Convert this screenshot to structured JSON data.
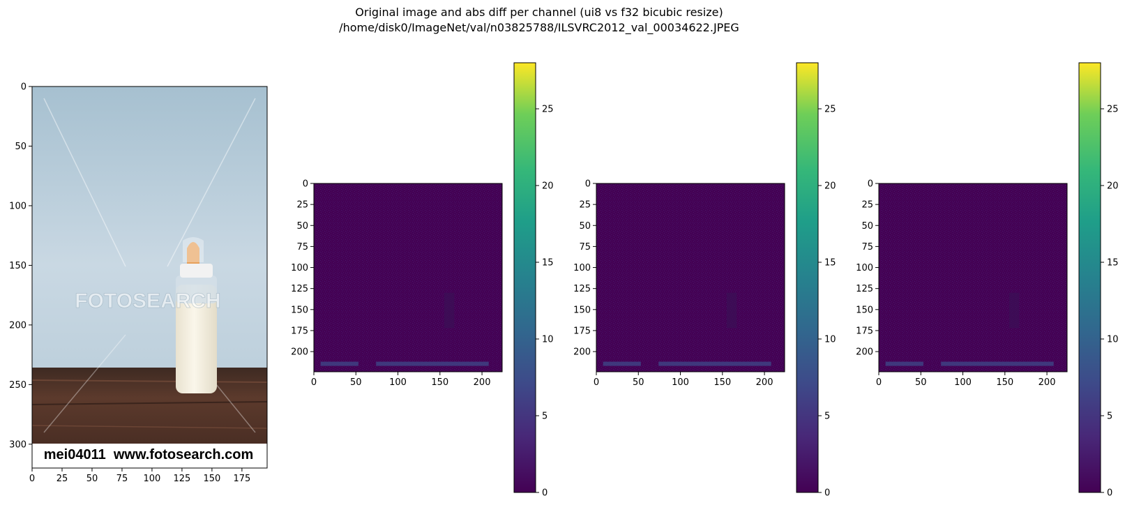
{
  "figure": {
    "title_line1": "Original image and abs diff per channel (ui8 vs f32 bicubic resize)",
    "title_line2": "/home/disk0/ImageNet/val/n03825788/ILSVRC2012_val_00034622.JPEG"
  },
  "colors": {
    "viridis_dark": "#440154",
    "viridis_purple": "#482878",
    "viridis_blue": "#3e4989",
    "viridis_teal": "#26828e",
    "viridis_green": "#35b779",
    "viridis_yellow": "#fde725",
    "photo_wall": "#b9cdd9",
    "photo_table": "#4e3026",
    "bottle_milk": "#f4efe0",
    "nipple": "#e6a05a"
  },
  "chart_data": [
    {
      "type": "image",
      "panel": "original",
      "xlim": [
        0,
        196
      ],
      "ylim": [
        320,
        0
      ],
      "xticks": [
        0,
        25,
        50,
        75,
        100,
        125,
        150,
        175
      ],
      "yticks": [
        0,
        50,
        100,
        150,
        200,
        250,
        300
      ],
      "image_text": {
        "watermark": "FOTOSEARCH",
        "caption": "mei04011  www.fotosearch.com"
      }
    },
    {
      "type": "heatmap",
      "panel": "diff-channel-1",
      "colormap": "viridis",
      "xlim": [
        0,
        224
      ],
      "ylim": [
        224,
        0
      ],
      "xticks": [
        0,
        50,
        100,
        150,
        200
      ],
      "yticks": [
        0,
        25,
        50,
        75,
        100,
        125,
        150,
        175,
        200
      ],
      "colorbar_range": [
        0,
        28
      ],
      "colorbar_ticks": [
        0,
        5,
        10,
        15,
        20,
        25
      ]
    },
    {
      "type": "heatmap",
      "panel": "diff-channel-2",
      "colormap": "viridis",
      "xlim": [
        0,
        224
      ],
      "ylim": [
        224,
        0
      ],
      "xticks": [
        0,
        50,
        100,
        150,
        200
      ],
      "yticks": [
        0,
        25,
        50,
        75,
        100,
        125,
        150,
        175,
        200
      ],
      "colorbar_range": [
        0,
        28
      ],
      "colorbar_ticks": [
        0,
        5,
        10,
        15,
        20,
        25
      ]
    },
    {
      "type": "heatmap",
      "panel": "diff-channel-3",
      "colormap": "viridis",
      "xlim": [
        0,
        224
      ],
      "ylim": [
        224,
        0
      ],
      "xticks": [
        0,
        50,
        100,
        150,
        200
      ],
      "yticks": [
        0,
        25,
        50,
        75,
        100,
        125,
        150,
        175,
        200
      ],
      "colorbar_range": [
        0,
        28
      ],
      "colorbar_ticks": [
        0,
        5,
        10,
        15,
        20,
        25
      ]
    }
  ]
}
